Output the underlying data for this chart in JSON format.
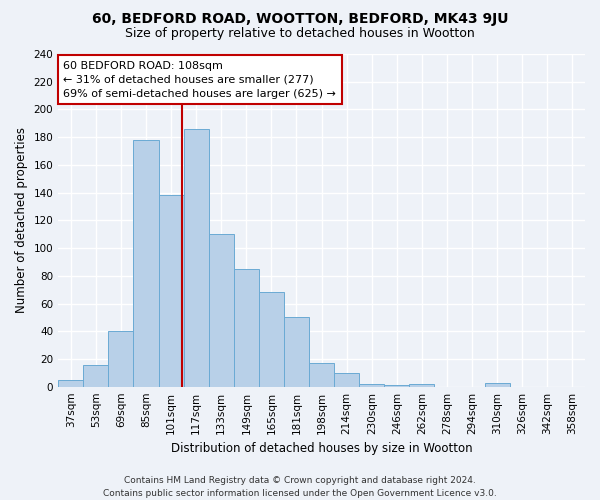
{
  "title": "60, BEDFORD ROAD, WOOTTON, BEDFORD, MK43 9JU",
  "subtitle": "Size of property relative to detached houses in Wootton",
  "xlabel": "Distribution of detached houses by size in Wootton",
  "ylabel": "Number of detached properties",
  "categories": [
    "37sqm",
    "53sqm",
    "69sqm",
    "85sqm",
    "101sqm",
    "117sqm",
    "133sqm",
    "149sqm",
    "165sqm",
    "181sqm",
    "198sqm",
    "214sqm",
    "230sqm",
    "246sqm",
    "262sqm",
    "278sqm",
    "294sqm",
    "310sqm",
    "326sqm",
    "342sqm",
    "358sqm"
  ],
  "values": [
    5,
    16,
    40,
    178,
    138,
    186,
    110,
    85,
    68,
    50,
    17,
    10,
    2,
    1,
    2,
    0,
    0,
    3,
    0,
    0,
    0
  ],
  "bar_color": "#b8d0e8",
  "bar_edge_color": "#6aaad4",
  "background_color": "#eef2f8",
  "grid_color": "#ffffff",
  "vline_x_index": 4.43,
  "vline_color": "#c00000",
  "annotation_text": "60 BEDFORD ROAD: 108sqm\n← 31% of detached houses are smaller (277)\n69% of semi-detached houses are larger (625) →",
  "annotation_box_facecolor": "#ffffff",
  "annotation_box_edgecolor": "#c00000",
  "ylim": [
    0,
    240
  ],
  "yticks": [
    0,
    20,
    40,
    60,
    80,
    100,
    120,
    140,
    160,
    180,
    200,
    220,
    240
  ],
  "footer_line1": "Contains HM Land Registry data © Crown copyright and database right 2024.",
  "footer_line2": "Contains public sector information licensed under the Open Government Licence v3.0.",
  "title_fontsize": 10,
  "subtitle_fontsize": 9,
  "xlabel_fontsize": 8.5,
  "ylabel_fontsize": 8.5,
  "tick_fontsize": 7.5,
  "annotation_fontsize": 8,
  "footer_fontsize": 6.5
}
